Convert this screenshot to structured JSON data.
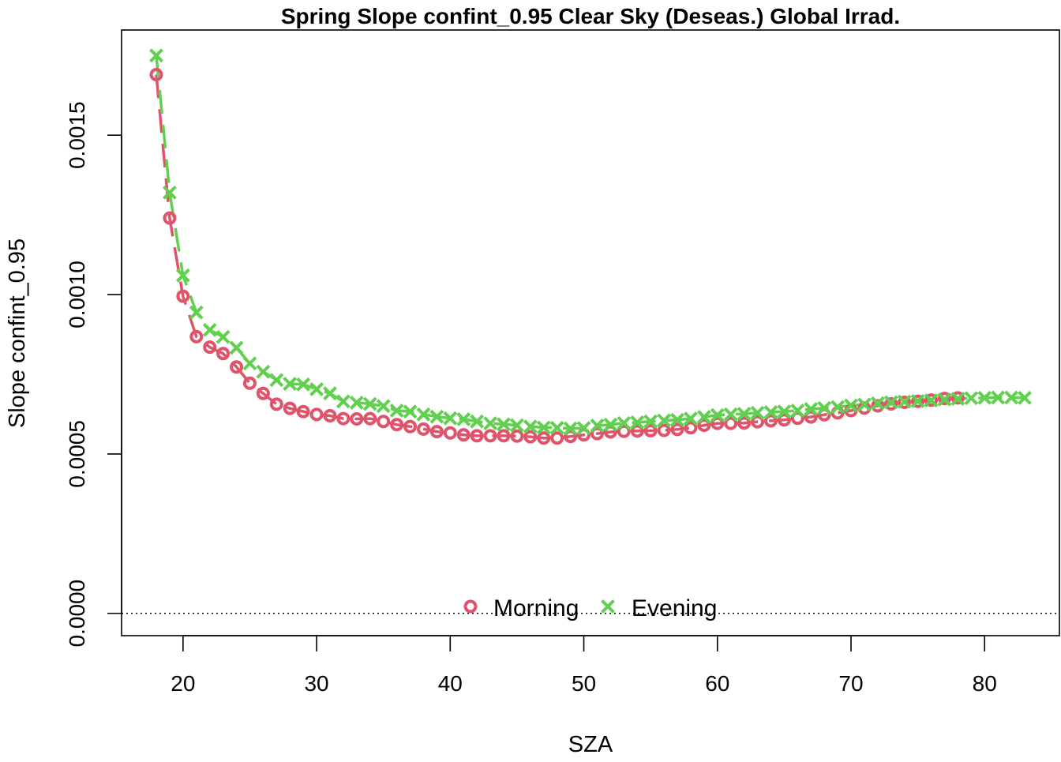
{
  "chart_data": {
    "type": "scatter",
    "title": "Spring Slope confint_0.95 Clear Sky (Deseas.) Global Irrad.",
    "xlabel": "SZA",
    "ylabel": "Slope confint_0.95",
    "xlim": [
      15.4,
      85.6
    ],
    "ylim": [
      -7e-05,
      0.00183
    ],
    "x_ticks": [
      20,
      30,
      40,
      50,
      60,
      70,
      80
    ],
    "x_tick_labels": [
      "20",
      "30",
      "40",
      "50",
      "60",
      "70",
      "80"
    ],
    "y_ticks": [
      0.0,
      0.0005,
      0.001,
      0.0015
    ],
    "y_tick_labels": [
      "0.0000",
      "0.0005",
      "0.0010",
      "0.0015"
    ],
    "grid": false,
    "reference_line": {
      "y": 0,
      "style": "dotted"
    },
    "legend": {
      "placement": "bottom-center",
      "entries": [
        {
          "label": "Morning",
          "marker": "circle",
          "color": "#DF536B"
        },
        {
          "label": "Evening",
          "marker": "cross",
          "color": "#61D04F"
        }
      ]
    },
    "series": [
      {
        "name": "Morning",
        "marker": "circle",
        "color": "#DF536B",
        "fit_line": "dashed",
        "x": [
          18,
          19,
          20,
          21,
          22,
          23,
          24,
          25,
          26,
          27,
          28,
          29,
          30,
          31,
          32,
          33,
          34,
          35,
          36,
          37,
          38,
          39,
          40,
          41,
          42,
          43,
          44,
          45,
          46,
          47,
          48,
          49,
          50,
          51,
          52,
          53,
          54,
          55,
          56,
          57,
          58,
          59,
          60,
          61,
          62,
          63,
          64,
          65,
          66,
          67,
          68,
          69,
          70,
          71,
          72,
          73,
          74,
          75,
          76,
          77,
          78
        ],
        "y": [
          0.00169,
          0.00124,
          0.000995,
          0.000868,
          0.000835,
          0.000815,
          0.000773,
          0.000722,
          0.00069,
          0.000656,
          0.000643,
          0.000633,
          0.000624,
          0.00062,
          0.000611,
          0.00061,
          0.000611,
          0.000602,
          0.000592,
          0.000586,
          0.000578,
          0.00057,
          0.000566,
          0.00056,
          0.000557,
          0.000557,
          0.000557,
          0.000556,
          0.000554,
          0.00055,
          0.00055,
          0.000555,
          0.00056,
          0.000564,
          0.000569,
          0.000571,
          0.000572,
          0.000573,
          0.000574,
          0.000577,
          0.000582,
          0.00059,
          0.000596,
          0.000596,
          0.000597,
          0.000601,
          0.000604,
          0.000607,
          0.000612,
          0.000616,
          0.000623,
          0.000629,
          0.000636,
          0.000644,
          0.000651,
          0.000657,
          0.000662,
          0.000665,
          0.000669,
          0.000674,
          0.000676
        ]
      },
      {
        "name": "Evening",
        "marker": "cross",
        "color": "#61D04F",
        "fit_line": "dashed",
        "x": [
          18,
          19,
          20,
          21,
          22,
          23,
          24,
          25,
          26,
          27,
          28,
          29,
          30,
          31,
          32,
          33,
          34,
          35,
          36,
          37,
          38,
          39,
          40,
          41,
          42,
          43,
          44,
          45,
          46,
          47,
          48,
          49,
          50,
          51,
          52,
          53,
          54,
          55,
          56,
          57,
          58,
          59,
          60,
          61,
          62,
          63,
          64,
          65,
          66,
          67,
          68,
          69,
          70,
          71,
          72,
          73,
          74,
          75,
          76,
          77,
          78,
          79,
          80,
          81,
          82,
          83
        ],
        "y": [
          0.00175,
          0.00132,
          0.00106,
          0.000944,
          0.000889,
          0.000867,
          0.000833,
          0.000784,
          0.000758,
          0.000732,
          0.00072,
          0.000718,
          0.000703,
          0.00069,
          0.000665,
          0.000661,
          0.000657,
          0.00065,
          0.000636,
          0.000633,
          0.000624,
          0.000617,
          0.000612,
          0.000609,
          0.000602,
          0.000596,
          0.000593,
          0.00059,
          0.000586,
          0.000583,
          0.000582,
          0.00058,
          0.000581,
          0.000589,
          0.000592,
          0.000597,
          0.000599,
          0.000602,
          0.000605,
          0.000607,
          0.000611,
          0.000616,
          0.000622,
          0.000624,
          0.000626,
          0.000629,
          0.000631,
          0.000633,
          0.000636,
          0.000641,
          0.000644,
          0.000647,
          0.000652,
          0.000655,
          0.000659,
          0.000662,
          0.000664,
          0.000666,
          0.000668,
          0.000671,
          0.000673,
          0.000675,
          0.000676,
          0.000677,
          0.000677,
          0.000676
        ]
      }
    ]
  }
}
